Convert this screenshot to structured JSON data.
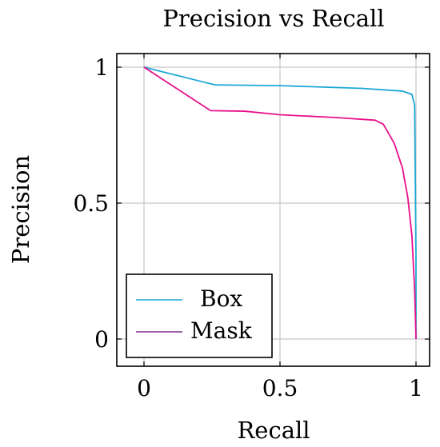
{
  "chart_data": {
    "type": "line",
    "title": "Precision vs Recall",
    "xlabel": "Recall",
    "ylabel": "Precision",
    "xlim": [
      -0.1,
      1.05
    ],
    "ylim": [
      -0.1,
      1.05
    ],
    "xticks": [
      0,
      0.5,
      1
    ],
    "xtick_labels": [
      "0",
      "0.5",
      "1"
    ],
    "yticks": [
      0,
      0.5,
      1
    ],
    "ytick_labels": [
      "0",
      "0.5",
      "1"
    ],
    "grid": true,
    "legend_position": "bottom-left",
    "series": [
      {
        "name": "Box",
        "color": "#1ba8d6",
        "x": [
          0,
          0.26,
          0.5,
          0.8,
          0.95,
          0.985,
          0.995,
          1.0,
          1.0
        ],
        "y": [
          1.0,
          0.935,
          0.932,
          0.922,
          0.912,
          0.9,
          0.86,
          0.3,
          0.0
        ]
      },
      {
        "name": "Mask",
        "color": "#e8108a",
        "x": [
          0,
          0.245,
          0.37,
          0.5,
          0.7,
          0.85,
          0.88,
          0.92,
          0.95,
          0.97,
          0.985,
          0.995,
          1.0
        ],
        "y": [
          1.0,
          0.84,
          0.838,
          0.825,
          0.815,
          0.805,
          0.79,
          0.72,
          0.63,
          0.52,
          0.38,
          0.18,
          0.0
        ]
      }
    ]
  }
}
